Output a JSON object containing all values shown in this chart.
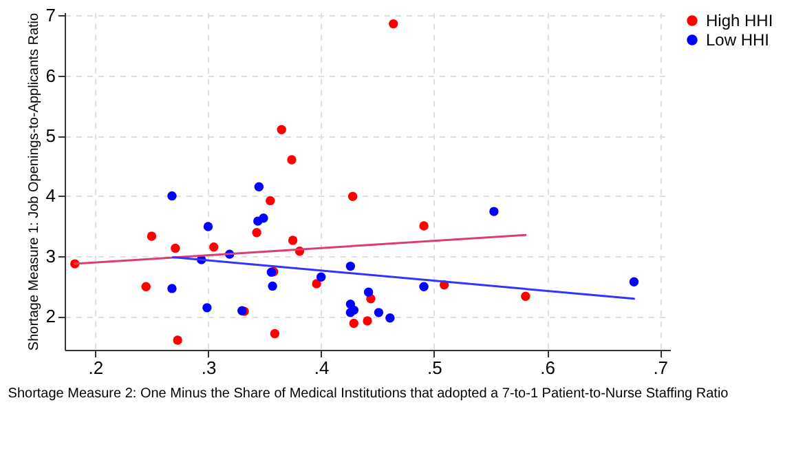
{
  "chart_data": {
    "type": "scatter",
    "xlabel": "Shortage Measure 2: One Minus the Share of Medical Institutions that adopted a 7-to-1 Patient-to-Nurse Staffing Ratio",
    "ylabel": "Shortage Measure 1: Job Openings-to-Applicants Ratio",
    "xlim": [
      0.173,
      0.709
    ],
    "ylim": [
      1.44,
      7.05
    ],
    "xticks": [
      {
        "value": 0.2,
        "label": ".2"
      },
      {
        "value": 0.3,
        "label": ".3"
      },
      {
        "value": 0.4,
        "label": ".4"
      },
      {
        "value": 0.5,
        "label": ".5"
      },
      {
        "value": 0.6,
        "label": ".6"
      },
      {
        "value": 0.7,
        "label": ".7"
      }
    ],
    "yticks": [
      2,
      3,
      4,
      5,
      6,
      7
    ],
    "grid": true,
    "legend": "right",
    "marker": "circle",
    "series": [
      {
        "name": "High HHI",
        "color": "#ff0000",
        "x": [
          0.182,
          0.25,
          0.271,
          0.245,
          0.273,
          0.305,
          0.332,
          0.343,
          0.355,
          0.365,
          0.374,
          0.375,
          0.381,
          0.358,
          0.359,
          0.396,
          0.428,
          0.429,
          0.441,
          0.444,
          0.464,
          0.491,
          0.509,
          0.581
        ],
        "values": [
          2.87,
          3.33,
          3.13,
          2.49,
          1.6,
          3.15,
          2.08,
          3.39,
          3.92,
          5.1,
          4.6,
          3.26,
          3.08,
          2.74,
          1.71,
          2.54,
          3.99,
          1.88,
          1.92,
          2.29,
          6.86,
          3.5,
          2.52,
          2.33
        ]
      },
      {
        "name": "Low HHI",
        "color": "#0000ff",
        "x": [
          0.268,
          0.268,
          0.3,
          0.299,
          0.294,
          0.319,
          0.33,
          0.345,
          0.344,
          0.349,
          0.356,
          0.357,
          0.4,
          0.426,
          0.426,
          0.426,
          0.429,
          0.442,
          0.451,
          0.461,
          0.491,
          0.553,
          0.677
        ],
        "values": [
          4.0,
          2.46,
          3.49,
          2.14,
          2.94,
          3.03,
          2.09,
          4.15,
          3.58,
          3.63,
          2.73,
          2.5,
          2.65,
          2.83,
          2.2,
          2.06,
          2.1,
          2.4,
          2.06,
          1.97,
          2.49,
          3.74,
          2.57
        ]
      },
      {
        "type": "line",
        "color": "#dc3c78",
        "line_style": "solid",
        "marker": "none",
        "x": [
          0.182,
          0.581
        ],
        "values": [
          2.87,
          3.35
        ]
      },
      {
        "type": "line",
        "color": "#3333ff",
        "line_style": "solid",
        "marker": "none",
        "x": [
          0.269,
          0.677
        ],
        "values": [
          2.98,
          2.29
        ]
      }
    ]
  }
}
